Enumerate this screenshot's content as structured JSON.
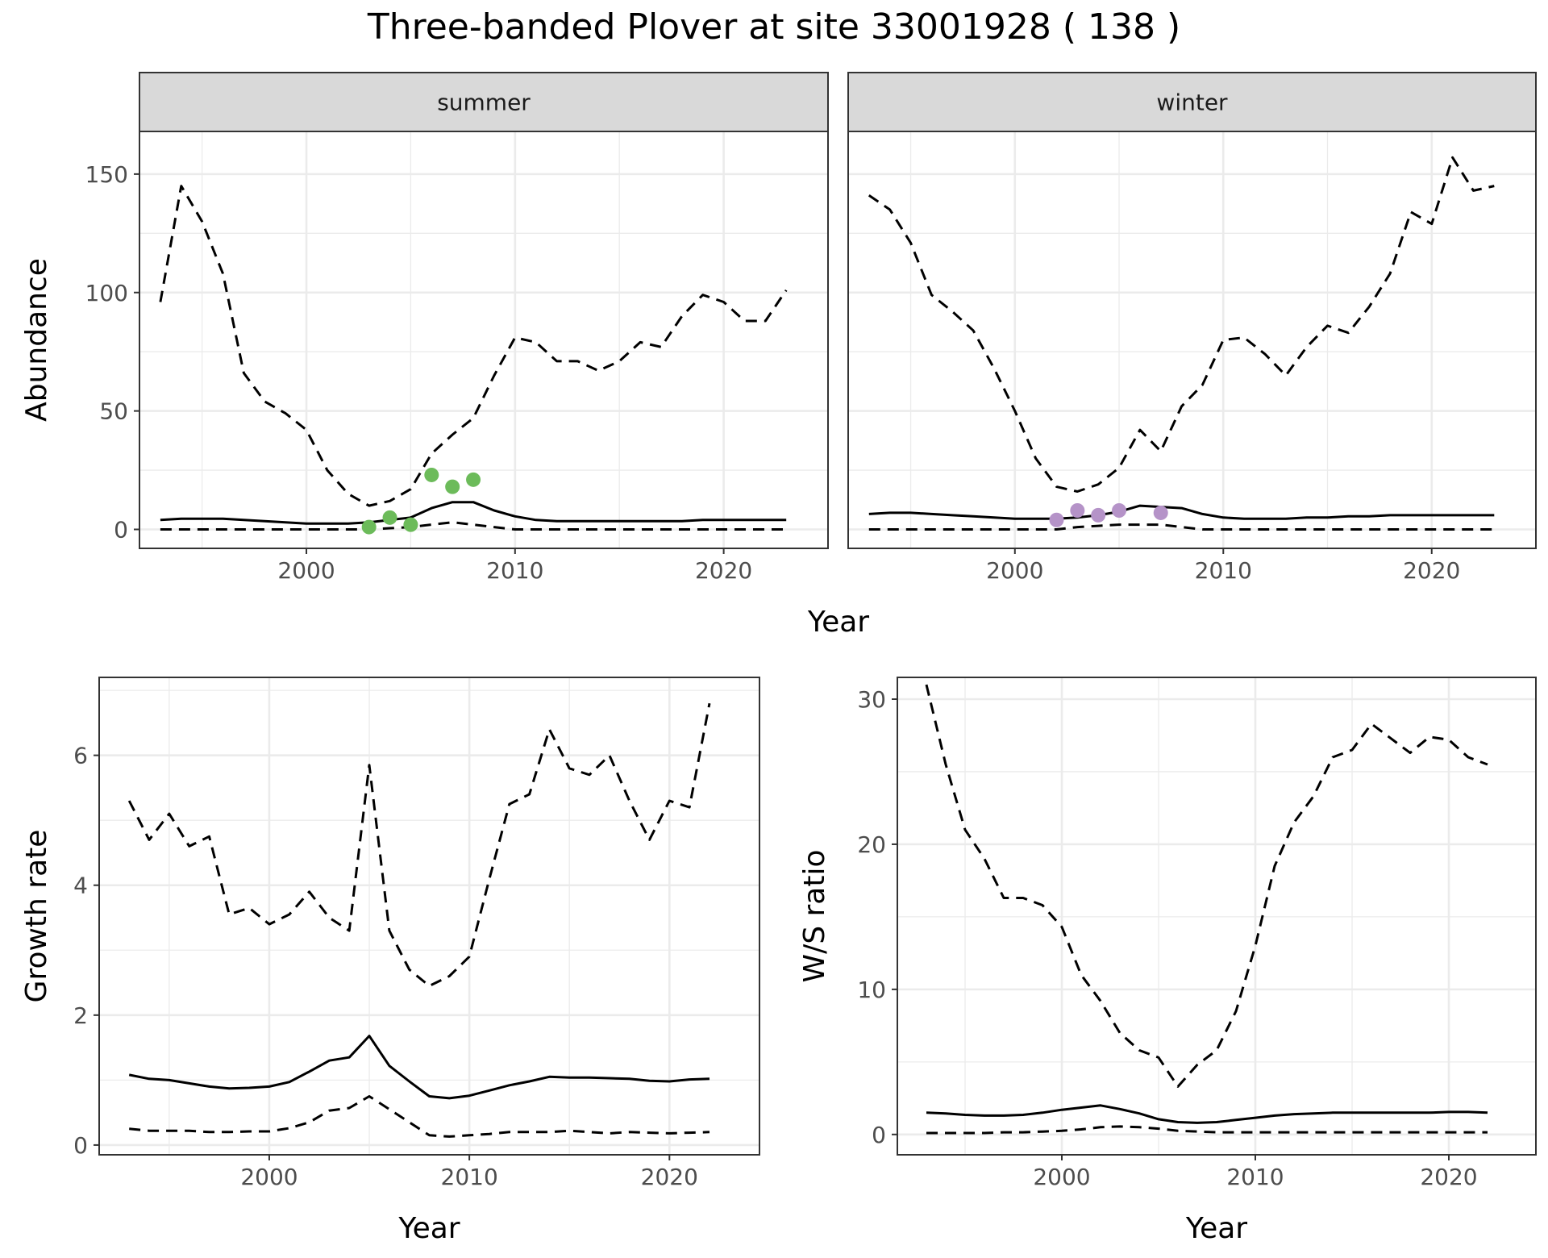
{
  "title": "Three-banded Plover at site 33001928 ( 138 )",
  "colors": {
    "summer_points": "#6cbb5a",
    "winter_points": "#b593c8",
    "lines": "#000000",
    "strip_fill": "#d9d9d9"
  },
  "shared_xlabel": "Year",
  "chart_data": [
    {
      "type": "line",
      "panel": "summer",
      "strip_label": "summer",
      "ylabel": "Abundance",
      "xlim": [
        1992,
        2025
      ],
      "ylim": [
        -8,
        168
      ],
      "x_ticks": [
        2000,
        2010,
        2020
      ],
      "y_ticks": [
        0,
        50,
        100,
        150
      ],
      "x": [
        1993,
        1994,
        1995,
        1996,
        1997,
        1998,
        1999,
        2000,
        2001,
        2002,
        2003,
        2004,
        2005,
        2006,
        2007,
        2008,
        2009,
        2010,
        2011,
        2012,
        2013,
        2014,
        2015,
        2016,
        2017,
        2018,
        2019,
        2020,
        2021,
        2022,
        2023
      ],
      "series": [
        {
          "role": "estimate",
          "style": "solid",
          "values": [
            4,
            4.5,
            4.5,
            4.5,
            4,
            3.5,
            3,
            2.5,
            2.5,
            2.5,
            3,
            4,
            5,
            9,
            11.5,
            11.5,
            8,
            5.5,
            4,
            3.5,
            3.5,
            3.5,
            3.5,
            3.5,
            3.5,
            3.5,
            4,
            4,
            4,
            4,
            4
          ]
        },
        {
          "role": "upper",
          "style": "dashed",
          "values": [
            96,
            145,
            130,
            108,
            66,
            54,
            49,
            42,
            25,
            15,
            10,
            12,
            17,
            32,
            40,
            47,
            65,
            81,
            79,
            71,
            71,
            67,
            71,
            79,
            77,
            90,
            99,
            96,
            88,
            88,
            101
          ]
        },
        {
          "role": "lower",
          "style": "dashed",
          "values": [
            0,
            0,
            0,
            0,
            0,
            0,
            0,
            0,
            0,
            0,
            0,
            0.5,
            1,
            2,
            3,
            2,
            1,
            0,
            0,
            0,
            0,
            0,
            0,
            0,
            0,
            0,
            0,
            0,
            0,
            0,
            0
          ]
        }
      ],
      "points": {
        "x": [
          2003,
          2004,
          2005,
          2006,
          2007,
          2008
        ],
        "y": [
          1,
          5,
          2,
          23,
          18,
          21
        ]
      }
    },
    {
      "type": "line",
      "panel": "winter",
      "strip_label": "winter",
      "xlim": [
        1992,
        2025
      ],
      "ylim": [
        -8,
        168
      ],
      "x_ticks": [
        2000,
        2010,
        2020
      ],
      "y_ticks": [
        0,
        50,
        100,
        150
      ],
      "x": [
        1993,
        1994,
        1995,
        1996,
        1997,
        1998,
        1999,
        2000,
        2001,
        2002,
        2003,
        2004,
        2005,
        2006,
        2007,
        2008,
        2009,
        2010,
        2011,
        2012,
        2013,
        2014,
        2015,
        2016,
        2017,
        2018,
        2019,
        2020,
        2021,
        2022,
        2023
      ],
      "series": [
        {
          "role": "estimate",
          "style": "solid",
          "values": [
            6.5,
            7,
            7,
            6.5,
            6,
            5.5,
            5,
            4.5,
            4.5,
            4.5,
            5,
            6,
            7.5,
            10,
            9.5,
            9,
            6.5,
            5,
            4.5,
            4.5,
            4.5,
            5,
            5,
            5.5,
            5.5,
            6,
            6,
            6,
            6,
            6,
            6
          ]
        },
        {
          "role": "upper",
          "style": "dashed",
          "values": [
            141,
            135,
            121,
            99,
            92,
            84,
            68,
            50,
            30,
            18,
            16,
            19,
            26,
            42,
            33,
            52,
            61,
            80,
            81,
            74,
            65,
            77,
            86,
            83,
            94,
            108,
            134,
            129,
            157,
            143,
            145
          ]
        },
        {
          "role": "lower",
          "style": "dashed",
          "values": [
            0,
            0,
            0,
            0,
            0,
            0,
            0,
            0,
            0,
            0,
            1,
            1.5,
            2,
            2,
            2,
            1,
            0,
            0,
            0,
            0,
            0,
            0,
            0,
            0,
            0,
            0,
            0,
            0,
            0,
            0,
            0
          ]
        }
      ],
      "points": {
        "x": [
          2002,
          2003,
          2004,
          2005,
          2007
        ],
        "y": [
          4,
          8,
          6,
          8,
          7
        ]
      }
    },
    {
      "type": "line",
      "panel": "growth",
      "xlabel": "Year",
      "ylabel": "Growth rate",
      "xlim": [
        1991.5,
        2024.5
      ],
      "ylim": [
        -0.15,
        7.2
      ],
      "x_ticks": [
        2000,
        2010,
        2020
      ],
      "y_ticks": [
        0,
        2,
        4,
        6
      ],
      "x": [
        1993,
        1994,
        1995,
        1996,
        1997,
        1998,
        1999,
        2000,
        2001,
        2002,
        2003,
        2004,
        2005,
        2006,
        2007,
        2008,
        2009,
        2010,
        2011,
        2012,
        2013,
        2014,
        2015,
        2016,
        2017,
        2018,
        2019,
        2020,
        2021,
        2022
      ],
      "series": [
        {
          "role": "estimate",
          "style": "solid",
          "values": [
            1.08,
            1.02,
            1.0,
            0.95,
            0.9,
            0.87,
            0.88,
            0.9,
            0.97,
            1.13,
            1.3,
            1.35,
            1.68,
            1.22,
            0.98,
            0.75,
            0.72,
            0.76,
            0.84,
            0.92,
            0.98,
            1.05,
            1.04,
            1.04,
            1.03,
            1.02,
            0.99,
            0.98,
            1.01,
            1.02
          ]
        },
        {
          "role": "upper",
          "style": "dashed",
          "values": [
            5.3,
            4.7,
            5.1,
            4.6,
            4.75,
            3.55,
            3.65,
            3.4,
            3.55,
            3.9,
            3.5,
            3.3,
            5.85,
            3.3,
            2.7,
            2.45,
            2.6,
            2.9,
            4.1,
            5.25,
            5.4,
            6.4,
            5.8,
            5.7,
            6.0,
            5.3,
            4.7,
            5.3,
            5.2,
            6.8
          ]
        },
        {
          "role": "lower",
          "style": "dashed",
          "values": [
            0.25,
            0.22,
            0.22,
            0.22,
            0.2,
            0.2,
            0.21,
            0.21,
            0.26,
            0.35,
            0.53,
            0.57,
            0.75,
            0.55,
            0.35,
            0.15,
            0.13,
            0.15,
            0.17,
            0.2,
            0.2,
            0.2,
            0.22,
            0.2,
            0.18,
            0.2,
            0.19,
            0.18,
            0.19,
            0.2
          ]
        }
      ]
    },
    {
      "type": "line",
      "panel": "ws_ratio",
      "xlabel": "Year",
      "ylabel": "W/S ratio",
      "xlim": [
        1991.5,
        2024.5
      ],
      "ylim": [
        -1.4,
        31.5
      ],
      "x_ticks": [
        2000,
        2010,
        2020
      ],
      "y_ticks": [
        0,
        10,
        20,
        30
      ],
      "x": [
        1993,
        1994,
        1995,
        1996,
        1997,
        1998,
        1999,
        2000,
        2001,
        2002,
        2003,
        2004,
        2005,
        2006,
        2007,
        2008,
        2009,
        2010,
        2011,
        2012,
        2013,
        2014,
        2015,
        2016,
        2017,
        2018,
        2019,
        2020,
        2021,
        2022
      ],
      "series": [
        {
          "role": "estimate",
          "style": "solid",
          "values": [
            1.5,
            1.45,
            1.35,
            1.3,
            1.3,
            1.35,
            1.5,
            1.7,
            1.85,
            2.0,
            1.75,
            1.45,
            1.05,
            0.85,
            0.8,
            0.85,
            1.0,
            1.15,
            1.3,
            1.4,
            1.45,
            1.5,
            1.5,
            1.5,
            1.5,
            1.5,
            1.5,
            1.55,
            1.55,
            1.5
          ]
        },
        {
          "role": "upper",
          "style": "dashed",
          "values": [
            31,
            25.5,
            21,
            19,
            16.3,
            16.3,
            15.8,
            14.3,
            11,
            9.2,
            7,
            5.8,
            5.3,
            3.3,
            4.8,
            5.8,
            8.5,
            13,
            18.5,
            21.5,
            23.3,
            26,
            26.5,
            28.3,
            27.3,
            26.3,
            27.4,
            27.2,
            26,
            25.5
          ]
        },
        {
          "role": "lower",
          "style": "dashed",
          "values": [
            0.1,
            0.1,
            0.1,
            0.1,
            0.15,
            0.15,
            0.2,
            0.25,
            0.35,
            0.5,
            0.55,
            0.5,
            0.4,
            0.25,
            0.2,
            0.15,
            0.15,
            0.15,
            0.15,
            0.15,
            0.15,
            0.15,
            0.15,
            0.15,
            0.15,
            0.15,
            0.15,
            0.15,
            0.15,
            0.15
          ]
        }
      ]
    }
  ]
}
